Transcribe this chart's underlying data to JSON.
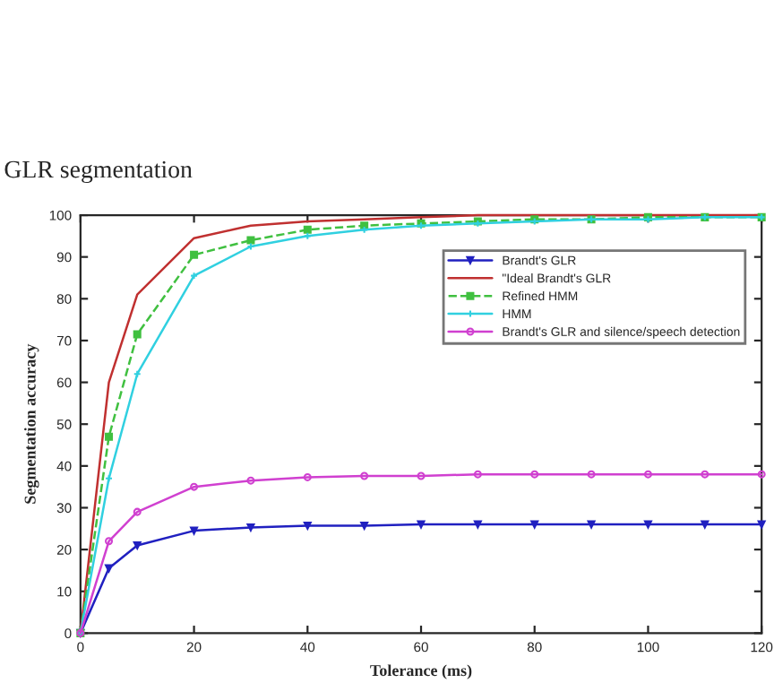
{
  "chart_data": {
    "type": "line",
    "xlabel": "Tolerance (ms)",
    "ylabel": "Segmentation accuracy",
    "annotations": [
      "GLR segmentation"
    ],
    "x": [
      0,
      5,
      10,
      20,
      30,
      40,
      50,
      60,
      70,
      80,
      90,
      100,
      110,
      120
    ],
    "series": [
      {
        "name": "Brandt's GLR",
        "color": "#2020c0",
        "marker": "triangle",
        "line_style": "solid",
        "values": [
          0,
          15.5,
          21,
          24.5,
          25.3,
          25.7,
          25.7,
          26,
          26,
          26,
          26,
          26,
          26,
          26
        ]
      },
      {
        "name": "\"Ideal Brandt's GLR",
        "color": "#c03030",
        "marker": "none",
        "line_style": "solid",
        "values": [
          0,
          60,
          81,
          94.5,
          97.5,
          98.5,
          99,
          99.5,
          100,
          100,
          100,
          100,
          100,
          100
        ]
      },
      {
        "name": "Refined HMM",
        "color": "#40c040",
        "marker": "square",
        "line_style": "dashed",
        "values": [
          0,
          47,
          71.5,
          90.5,
          94,
          96.5,
          97.5,
          98,
          98.5,
          99,
          99,
          99.5,
          99.5,
          99.5
        ]
      },
      {
        "name": "HMM",
        "color": "#30d0e0",
        "marker": "cross",
        "line_style": "solid",
        "values": [
          0,
          37,
          62,
          85.5,
          92.5,
          95,
          96.5,
          97.5,
          98,
          98.5,
          99,
          99,
          99.5,
          99.5
        ]
      },
      {
        "name": "Brandt's GLR and silence/speech detection",
        "color": "#d040d0",
        "marker": "circle",
        "line_style": "solid",
        "values": [
          0,
          22,
          29,
          35,
          36.5,
          37.3,
          37.6,
          37.6,
          38,
          38,
          38,
          38,
          38,
          38
        ]
      }
    ],
    "xlim": [
      0,
      120
    ],
    "xticks": [
      0,
      20,
      40,
      60,
      80,
      100,
      120
    ],
    "ylim": [
      0,
      100
    ],
    "yticks": [
      0,
      10,
      20,
      30,
      40,
      50,
      60,
      70,
      80,
      90,
      100
    ],
    "grid": false,
    "legend": "top right"
  }
}
